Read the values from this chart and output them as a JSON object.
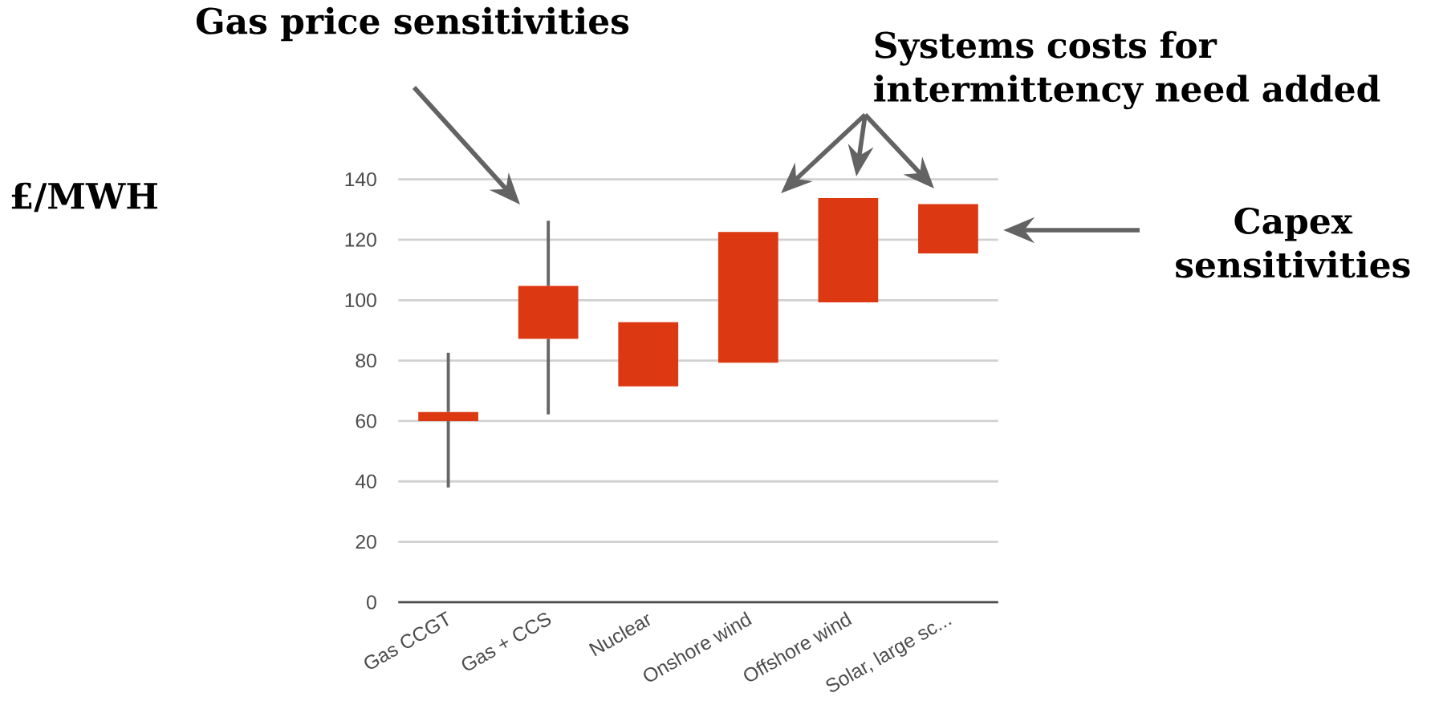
{
  "chart_data": {
    "type": "candlestick",
    "categories": [
      "Gas CCGT",
      "Gas + CCS",
      "Nuclear",
      "Onshore wind",
      "Offshore wind",
      "Solar, large sc..."
    ],
    "ohlc": [
      [
        60,
        82.6,
        38,
        63
      ],
      [
        87.2,
        126.3,
        62.2,
        104.7
      ],
      [
        71.5,
        92.7,
        71.5,
        92.7
      ],
      [
        79.3,
        122.6,
        79.3,
        122.6
      ],
      [
        99.3,
        133.8,
        99.3,
        133.8
      ],
      [
        115.5,
        131.8,
        115.5,
        131.8
      ]
    ],
    "color": "#dc3912",
    "ylim": [
      0,
      140
    ],
    "yticks": [
      0,
      20,
      40,
      60,
      80,
      100,
      120,
      140
    ],
    "grid": "y",
    "annotations": [
      "Gas price sensitivities",
      "Systems costs for intermittency need added",
      "Capex sensitivities",
      "£/MWH"
    ]
  }
}
